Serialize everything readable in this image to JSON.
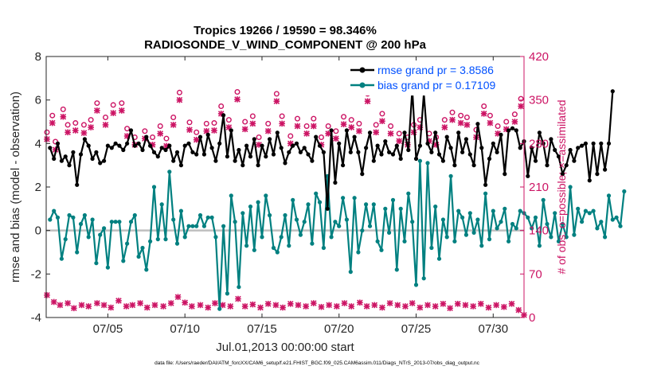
{
  "chart_data": {
    "type": "line",
    "title_line1": "Tropics 19266 / 19590 = 98.346%",
    "title_line2": "RADIOSONDE_V_WIND_COMPONENT @ 200 hPa",
    "xlabel": "Jul.01,2013 00:00:00 start",
    "ylabel_left": "rmse and bias (model - observation)",
    "ylabel_right": "# of obs: o=possible; ×=assimilated",
    "footer": "data file: /Users/raeder/DAI/ATM_forcXX/CAM6_setup/f.e21.FHIST_BGC.f09_025.CAM6assim.011/Diags_NTrS_2013-07/obs_diag_output.nc",
    "x_ticks": [
      {
        "value": 5,
        "label": "07/05"
      },
      {
        "value": 10,
        "label": "07/10"
      },
      {
        "value": 15,
        "label": "07/15"
      },
      {
        "value": 20,
        "label": "07/20"
      },
      {
        "value": 25,
        "label": "07/25"
      },
      {
        "value": 30,
        "label": "07/30"
      }
    ],
    "xlim": [
      1.0,
      32.0
    ],
    "ylim_left": [
      -4,
      8
    ],
    "y_ticks_left": [
      {
        "value": -4,
        "label": "-4"
      },
      {
        "value": -2,
        "label": "-2"
      },
      {
        "value": 0,
        "label": "0"
      },
      {
        "value": 2,
        "label": "2"
      },
      {
        "value": 4,
        "label": "4"
      },
      {
        "value": 6,
        "label": "6"
      },
      {
        "value": 8,
        "label": "8"
      }
    ],
    "ylim_right": [
      0,
      420
    ],
    "y_ticks_right": [
      {
        "value": 0,
        "label": "0"
      },
      {
        "value": 70,
        "label": "70"
      },
      {
        "value": 140,
        "label": "140"
      },
      {
        "value": 210,
        "label": "210"
      },
      {
        "value": 280,
        "label": "280"
      },
      {
        "value": 350,
        "label": "350"
      },
      {
        "value": 420,
        "label": "420"
      }
    ],
    "legend": [
      {
        "label": "rmse grand pr = 3.8586",
        "color": "#000000"
      },
      {
        "label": "bias grand pr = 0.17109",
        "color": "#008080"
      }
    ],
    "colors": {
      "rmse": "#000000",
      "bias": "#008080",
      "obs": "#cc1464",
      "zero_line": "#bfbfbf",
      "legend_text": "#0050ff",
      "axes": "#262626"
    },
    "x_start": 1.25,
    "x_step": 0.25,
    "series": [
      {
        "name": "rmse",
        "axis": "left",
        "values": [
          3.8,
          3.3,
          4.0,
          3.2,
          3.4,
          3.0,
          3.6,
          2.1,
          3.5,
          4.2,
          3.9,
          3.3,
          3.6,
          3.1,
          3.2,
          3.9,
          3.8,
          4.0,
          3.9,
          3.7,
          4.0,
          4.6,
          3.9,
          4.0,
          3.7,
          4.3,
          3.9,
          3.6,
          3.4,
          3.8,
          3.7,
          3.9,
          3.2,
          3.6,
          3.0,
          3.9,
          4.0,
          3.6,
          3.5,
          4.3,
          3.5,
          4.4,
          3.8,
          3.2,
          4.0,
          5.3,
          3.4,
          4.6,
          3.2,
          3.7,
          3.0,
          3.9,
          3.4,
          4.2,
          3.0,
          3.9,
          3.4,
          4.2,
          3.5,
          4.5,
          3.8,
          3.1,
          3.6,
          3.9,
          4.0,
          3.6,
          3.8,
          3.5,
          3.2,
          4.3,
          3.9,
          3.6,
          1.0,
          4.6,
          2.2,
          4.0,
          3.0,
          4.6,
          3.6,
          4.3,
          3.6,
          2.6,
          3.8,
          4.5,
          3.2,
          3.9,
          3.5,
          4.1,
          3.6,
          3.5,
          3.9,
          3.3,
          4.5,
          3.7,
          6.5,
          3.3,
          3.9,
          6.3,
          4.0,
          3.6,
          4.5,
          3.5,
          3.2,
          4.3,
          3.8,
          3.0,
          4.5,
          3.6,
          4.2,
          3.5,
          3.0,
          4.9,
          3.8,
          2.1,
          3.3,
          4.0,
          3.6,
          4.4,
          2.6,
          4.6,
          4.7,
          4.6,
          3.8,
          4.1,
          2.5,
          3.8,
          3.2,
          4.5,
          4.0,
          3.0,
          4.2,
          3.7,
          3.4,
          2.6,
          3.0,
          3.7,
          3.2,
          3.8,
          3.9,
          4.0,
          2.3,
          4.0,
          2.6,
          4.0,
          2.8,
          4.0,
          6.4
        ]
      },
      {
        "name": "bias",
        "axis": "left",
        "values": [
          0.5,
          0.9,
          0.6,
          -1.3,
          -0.4,
          0.7,
          0.6,
          -1.0,
          0.3,
          0.7,
          -0.3,
          0.5,
          -1.5,
          -0.2,
          0.1,
          -1.7,
          0.4,
          0.4,
          0.4,
          -1.4,
          -0.6,
          0.4,
          0.7,
          -1.2,
          -0.8,
          -1.8,
          -0.5,
          2.0,
          -0.4,
          1.2,
          -0.4,
          2.7,
          0.5,
          -0.6,
          0.9,
          -0.3,
          0.2,
          0.2,
          0.2,
          0.7,
          0.2,
          0.6,
          0.6,
          -0.3,
          -3.6,
          0.2,
          -2.9,
          1.6,
          0.4,
          -2.6,
          0.8,
          -0.7,
          1.1,
          -0.9,
          1.3,
          -0.3,
          1.6,
          0.7,
          -0.8,
          -1.0,
          -0.3,
          0.7,
          -0.7,
          1.4,
          0.5,
          -0.2,
          0.4,
          1.2,
          -0.6,
          1.7,
          1.3,
          -0.8,
          2.5,
          -0.3,
          0.4,
          0.2,
          1.5,
          0.5,
          -1.9,
          1.5,
          -1.0,
          0.0,
          1.2,
          0.2,
          1.2,
          -0.5,
          -0.9,
          1.0,
          -0.1,
          1.4,
          -1.8,
          1.0,
          -0.5,
          1.7,
          0.4,
          -2.5,
          3.2,
          -2.2,
          3.1,
          -0.8,
          1.1,
          -1.3,
          0.5,
          -0.3,
          2.5,
          -0.5,
          0.9,
          0.6,
          -0.2,
          0.8,
          -0.1,
          0.5,
          -0.7,
          1.7,
          -0.4,
          0.9,
          0.1,
          0.4,
          1.0,
          -0.5,
          0.3,
          0.1,
          0.9,
          0.8,
          0.6,
          0.1,
          0.6,
          -0.7,
          1.4,
          0.3,
          -0.3,
          0.8,
          -0.5,
          0.3,
          -0.3,
          2.0,
          -0.2,
          1.0,
          0.4,
          0.9,
          0.8,
          0.9,
          0.1,
          0.4,
          -0.3,
          1.6,
          0.5,
          0.6,
          0.2,
          1.8
        ]
      },
      {
        "name": "obs_possible",
        "axis": "right",
        "marker": "o",
        "points": [
          [
            1.05,
            298
          ],
          [
            1.4,
            325
          ],
          [
            1.6,
            283
          ],
          [
            2.1,
            335
          ],
          [
            2.4,
            310
          ],
          [
            2.9,
            313
          ],
          [
            3.45,
            310
          ],
          [
            3.9,
            318
          ],
          [
            4.3,
            345
          ],
          [
            4.85,
            322
          ],
          [
            5.35,
            342
          ],
          [
            5.9,
            345
          ],
          [
            6.25,
            304
          ],
          [
            6.75,
            290
          ],
          [
            7.4,
            300
          ],
          [
            7.9,
            290
          ],
          [
            8.4,
            308
          ],
          [
            8.8,
            288
          ],
          [
            9.25,
            322
          ],
          [
            9.65,
            362
          ],
          [
            10.3,
            314
          ],
          [
            10.75,
            298
          ],
          [
            11.4,
            312
          ],
          [
            11.9,
            313
          ],
          [
            12.35,
            340
          ],
          [
            12.85,
            318
          ],
          [
            13.4,
            363
          ],
          [
            13.9,
            315
          ],
          [
            14.4,
            324
          ],
          [
            14.8,
            290
          ],
          [
            15.4,
            312
          ],
          [
            15.95,
            360
          ],
          [
            16.3,
            324
          ],
          [
            16.85,
            292
          ],
          [
            17.3,
            320
          ],
          [
            17.9,
            308
          ],
          [
            18.35,
            320
          ],
          [
            18.85,
            290
          ],
          [
            19.3,
            308
          ],
          [
            19.8,
            300
          ],
          [
            20.3,
            323
          ],
          [
            20.8,
            318
          ],
          [
            21.3,
            312
          ],
          [
            21.85,
            360
          ],
          [
            22.4,
            310
          ],
          [
            22.8,
            328
          ],
          [
            23.35,
            308
          ],
          [
            23.9,
            296
          ],
          [
            24.45,
            290
          ],
          [
            24.85,
            310
          ],
          [
            25.25,
            318
          ],
          [
            25.85,
            296
          ],
          [
            26.3,
            290
          ],
          [
            26.85,
            318
          ],
          [
            27.35,
            330
          ],
          [
            27.9,
            325
          ],
          [
            28.3,
            322
          ],
          [
            28.9,
            302
          ],
          [
            29.4,
            340
          ],
          [
            29.8,
            325
          ],
          [
            30.3,
            308
          ],
          [
            30.85,
            315
          ],
          [
            31.4,
            327
          ],
          [
            31.8,
            352
          ]
        ]
      },
      {
        "name": "obs_assimilated",
        "axis": "right",
        "marker": "x",
        "points": [
          [
            1.05,
            287
          ],
          [
            1.4,
            313
          ],
          [
            1.6,
            270
          ],
          [
            2.1,
            323
          ],
          [
            2.4,
            298
          ],
          [
            2.9,
            301
          ],
          [
            3.45,
            297
          ],
          [
            3.9,
            306
          ],
          [
            4.3,
            333
          ],
          [
            4.85,
            310
          ],
          [
            5.35,
            329
          ],
          [
            5.9,
            333
          ],
          [
            6.25,
            292
          ],
          [
            6.75,
            278
          ],
          [
            7.4,
            288
          ],
          [
            7.9,
            278
          ],
          [
            8.4,
            296
          ],
          [
            8.8,
            276
          ],
          [
            9.25,
            310
          ],
          [
            9.65,
            350
          ],
          [
            10.3,
            302
          ],
          [
            10.75,
            286
          ],
          [
            11.4,
            300
          ],
          [
            11.9,
            301
          ],
          [
            12.35,
            328
          ],
          [
            12.85,
            306
          ],
          [
            13.4,
            351
          ],
          [
            13.9,
            303
          ],
          [
            14.4,
            312
          ],
          [
            14.8,
            278
          ],
          [
            15.4,
            300
          ],
          [
            15.95,
            348
          ],
          [
            16.3,
            312
          ],
          [
            16.85,
            280
          ],
          [
            17.3,
            308
          ],
          [
            17.9,
            296
          ],
          [
            18.35,
            308
          ],
          [
            18.85,
            278
          ],
          [
            19.3,
            296
          ],
          [
            19.8,
            288
          ],
          [
            20.3,
            311
          ],
          [
            20.8,
            306
          ],
          [
            21.3,
            300
          ],
          [
            21.85,
            348
          ],
          [
            22.4,
            298
          ],
          [
            22.8,
            316
          ],
          [
            23.35,
            296
          ],
          [
            23.9,
            284
          ],
          [
            24.45,
            278
          ],
          [
            24.85,
            298
          ],
          [
            25.25,
            306
          ],
          [
            25.85,
            284
          ],
          [
            26.3,
            278
          ],
          [
            26.85,
            306
          ],
          [
            27.35,
            318
          ],
          [
            27.9,
            313
          ],
          [
            28.3,
            310
          ],
          [
            28.9,
            290
          ],
          [
            29.4,
            328
          ],
          [
            29.8,
            313
          ],
          [
            30.3,
            296
          ],
          [
            30.85,
            303
          ],
          [
            31.4,
            315
          ],
          [
            31.8,
            340
          ]
        ]
      },
      {
        "name": "obs_bottom",
        "axis": "right",
        "marker": "x",
        "points": [
          [
            1.05,
            36
          ],
          [
            1.5,
            25
          ],
          [
            1.9,
            20
          ],
          [
            2.4,
            23
          ],
          [
            2.8,
            15
          ],
          [
            3.3,
            20
          ],
          [
            3.75,
            18
          ],
          [
            4.3,
            23
          ],
          [
            4.75,
            20
          ],
          [
            5.2,
            16
          ],
          [
            5.7,
            27
          ],
          [
            6.2,
            18
          ],
          [
            6.6,
            20
          ],
          [
            7.1,
            23
          ],
          [
            7.55,
            16
          ],
          [
            8.05,
            20
          ],
          [
            8.6,
            18
          ],
          [
            9.1,
            23
          ],
          [
            9.55,
            33
          ],
          [
            10.0,
            24
          ],
          [
            10.45,
            18
          ],
          [
            11.0,
            20
          ],
          [
            11.5,
            16
          ],
          [
            11.95,
            23
          ],
          [
            12.45,
            20
          ],
          [
            12.95,
            18
          ],
          [
            13.45,
            30
          ],
          [
            13.9,
            18
          ],
          [
            14.4,
            21
          ],
          [
            14.9,
            16
          ],
          [
            15.4,
            22
          ],
          [
            15.9,
            20
          ],
          [
            16.35,
            16
          ],
          [
            16.85,
            22
          ],
          [
            17.35,
            20
          ],
          [
            17.85,
            18
          ],
          [
            18.35,
            23
          ],
          [
            18.85,
            17
          ],
          [
            19.35,
            20
          ],
          [
            19.85,
            18
          ],
          [
            20.35,
            23
          ],
          [
            20.8,
            18
          ],
          [
            21.35,
            24
          ],
          [
            21.8,
            18
          ],
          [
            22.3,
            20
          ],
          [
            22.8,
            16
          ],
          [
            23.3,
            23
          ],
          [
            23.8,
            20
          ],
          [
            24.3,
            18
          ],
          [
            24.75,
            23
          ],
          [
            25.25,
            16
          ],
          [
            25.75,
            20
          ],
          [
            26.25,
            18
          ],
          [
            26.75,
            22
          ],
          [
            27.2,
            15
          ],
          [
            27.7,
            22
          ],
          [
            28.2,
            20
          ],
          [
            28.7,
            18
          ],
          [
            29.2,
            22
          ],
          [
            29.7,
            16
          ],
          [
            30.2,
            20
          ],
          [
            30.7,
            17
          ],
          [
            31.2,
            22
          ],
          [
            31.65,
            12
          ],
          [
            32.0,
            4
          ]
        ]
      }
    ]
  }
}
